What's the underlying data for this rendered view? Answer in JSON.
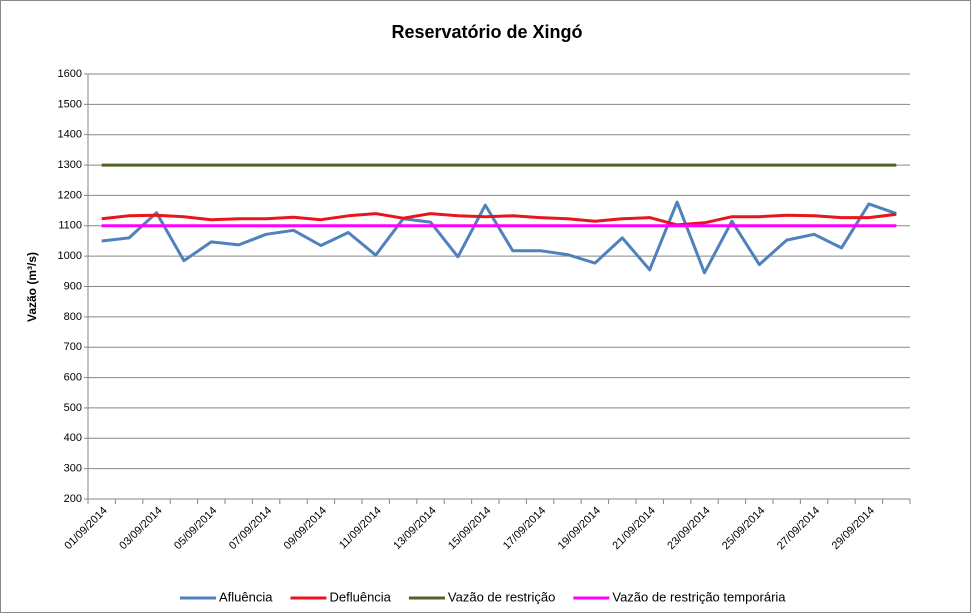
{
  "chart_data": {
    "type": "line",
    "title": "Reservatório de Xingó",
    "y_label": "Vazão (m³/s)",
    "categories": [
      "01/09/2014",
      null,
      "03/09/2014",
      null,
      "05/09/2014",
      null,
      "07/09/2014",
      null,
      "09/09/2014",
      null,
      "11/09/2014",
      null,
      "13/09/2014",
      null,
      "15/09/2014",
      null,
      "17/09/2014",
      null,
      "19/09/2014",
      null,
      "21/09/2014",
      null,
      "23/09/2014",
      null,
      "25/09/2014",
      null,
      "27/09/2014",
      null,
      "29/09/2014",
      null
    ],
    "series": [
      {
        "name": "Afluência",
        "color": "#4f81bd",
        "values": [
          1050,
          1060,
          1143,
          985,
          1047,
          1037,
          1072,
          1085,
          1035,
          1078,
          1003,
          1123,
          1112,
          998,
          1168,
          1018,
          1018,
          1005,
          977,
          1060,
          955,
          1178,
          945,
          1115,
          972,
          1053,
          1072,
          1027,
          1172,
          1140
        ]
      },
      {
        "name": "Defluência",
        "color": "#e8161c",
        "values": [
          1123,
          1133,
          1135,
          1130,
          1120,
          1123,
          1123,
          1128,
          1120,
          1133,
          1140,
          1125,
          1140,
          1133,
          1130,
          1133,
          1127,
          1123,
          1115,
          1123,
          1127,
          1103,
          1110,
          1130,
          1130,
          1135,
          1133,
          1127,
          1127,
          1138
        ]
      },
      {
        "name": "Vazão de restrição",
        "color": "#4f6228",
        "values": [
          1300,
          1300,
          1300,
          1300,
          1300,
          1300,
          1300,
          1300,
          1300,
          1300,
          1300,
          1300,
          1300,
          1300,
          1300,
          1300,
          1300,
          1300,
          1300,
          1300,
          1300,
          1300,
          1300,
          1300,
          1300,
          1300,
          1300,
          1300,
          1300,
          1300
        ]
      },
      {
        "name": "Vazão de restrição temporária",
        "color": "#ff00ff",
        "values": [
          1100,
          1100,
          1100,
          1100,
          1100,
          1100,
          1100,
          1100,
          1100,
          1100,
          1100,
          1100,
          1100,
          1100,
          1100,
          1100,
          1100,
          1100,
          1100,
          1100,
          1100,
          1100,
          1100,
          1100,
          1100,
          1100,
          1100,
          1100,
          1100,
          1100
        ]
      }
    ],
    "ylim": [
      200,
      1600
    ],
    "yticks": [
      200,
      300,
      400,
      500,
      600,
      700,
      800,
      900,
      1000,
      1100,
      1200,
      1300,
      1400,
      1500,
      1600
    ],
    "grid": true,
    "legend": "bottom"
  }
}
